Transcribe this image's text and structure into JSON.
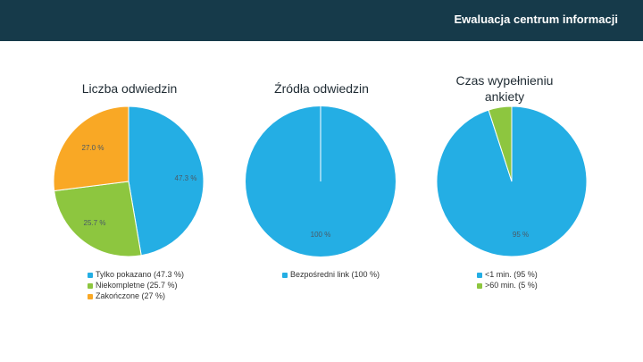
{
  "header": {
    "title": "Ewaluacja centrum informacji"
  },
  "chart_data": [
    {
      "type": "pie",
      "title": "Liczba odwiedzin",
      "slices": [
        {
          "label": "Tylko pokazano",
          "value": 47.3,
          "color": "#24aee4",
          "data_label": "47.3 %",
          "legend_label": "Tylko pokazano (47.3 %)"
        },
        {
          "label": "Niekompletne",
          "value": 25.7,
          "color": "#8dc63f",
          "data_label": "25.7 %",
          "legend_label": "Niekompletne (25.7 %)"
        },
        {
          "label": "Zakończone",
          "value": 27,
          "color": "#f9a825",
          "data_label": "27.0 %",
          "legend_label": "Zakończone (27 %)"
        }
      ]
    },
    {
      "type": "pie",
      "title": "Źródła odwiedzin",
      "slices": [
        {
          "label": "Bezpośredni link",
          "value": 100,
          "color": "#24aee4",
          "data_label": "100 %",
          "legend_label": "Bezpośredni link (100 %)"
        }
      ]
    },
    {
      "type": "pie",
      "title": "Czas wypełnieniu ankiety",
      "slices": [
        {
          "label": "<1 min.",
          "value": 95,
          "color": "#24aee4",
          "data_label": "95 %",
          "legend_label": "<1 min. (95 %)"
        },
        {
          "label": ">60 min.",
          "value": 5,
          "color": "#8dc63f",
          "data_label": "",
          "legend_label": ">60 min. (5 %)"
        }
      ]
    }
  ]
}
